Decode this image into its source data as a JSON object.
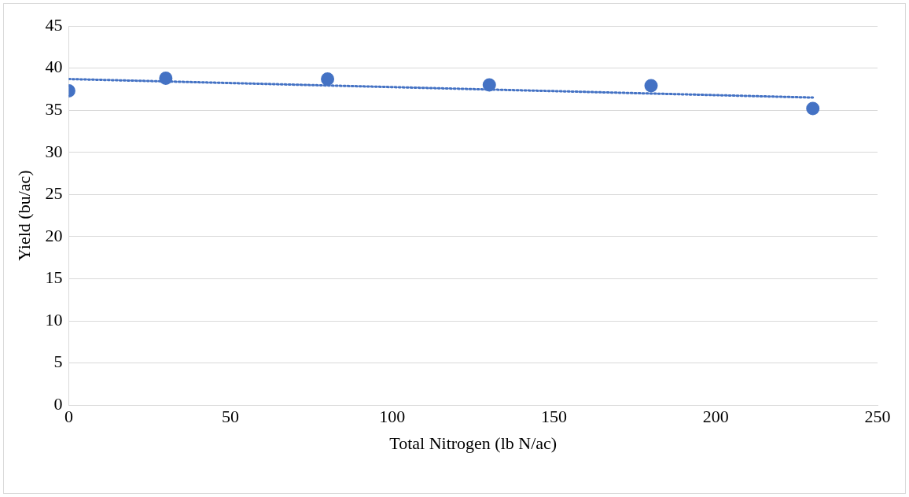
{
  "chart_data": {
    "type": "scatter",
    "xlabel": "Total Nitrogen (lb N/ac)",
    "ylabel": "Yield (bu/ac)",
    "xlim": [
      0,
      250
    ],
    "xticks": [
      0,
      50,
      100,
      150,
      200,
      250
    ],
    "ylim": [
      0,
      45
    ],
    "yticks": [
      0,
      5,
      10,
      15,
      20,
      25,
      30,
      35,
      40,
      45
    ],
    "grid": "y",
    "legend": false,
    "marker": "circle",
    "series": [
      {
        "type": "scatter",
        "color": "#4472c4",
        "x": [
          0,
          30,
          80,
          130,
          180,
          230
        ],
        "values": [
          37.3,
          38.8,
          38.7,
          38.0,
          37.9,
          35.2
        ]
      },
      {
        "type": "line",
        "color": "#4472c4",
        "line_style": "dotted",
        "marker": "none",
        "x": [
          0,
          230
        ],
        "values": [
          38.7,
          36.5
        ]
      }
    ]
  }
}
